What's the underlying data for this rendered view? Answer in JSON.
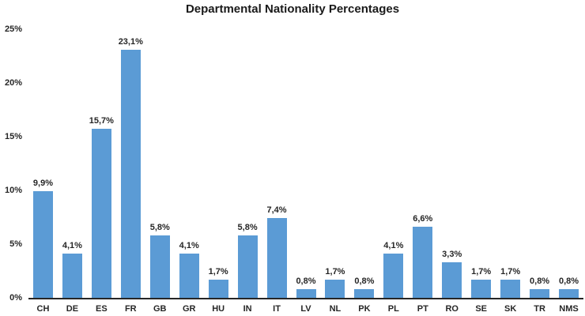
{
  "chart_data": {
    "type": "bar",
    "title": "Departmental Nationality Percentages",
    "categories": [
      "CH",
      "DE",
      "ES",
      "FR",
      "GB",
      "GR",
      "HU",
      "IN",
      "IT",
      "LV",
      "NL",
      "PK",
      "PL",
      "PT",
      "RO",
      "SE",
      "SK",
      "TR",
      "NMS"
    ],
    "values": [
      9.9,
      4.1,
      15.7,
      23.1,
      5.8,
      4.1,
      1.7,
      5.8,
      7.4,
      0.8,
      1.7,
      0.8,
      4.1,
      6.6,
      3.3,
      1.7,
      1.7,
      0.8,
      0.8
    ],
    "data_labels": [
      "9,9%",
      "4,1%",
      "15,7%",
      "23,1%",
      "5,8%",
      "4,1%",
      "1,7%",
      "5,8%",
      "7,4%",
      "0,8%",
      "1,7%",
      "0,8%",
      "4,1%",
      "6,6%",
      "3,3%",
      "1,7%",
      "1,7%",
      "0,8%",
      "0,8%"
    ],
    "xlabel": "",
    "ylabel": "",
    "ylim": [
      0,
      25
    ],
    "y_tick_values": [
      0,
      5,
      10,
      15,
      20,
      25
    ],
    "y_tick_labels": [
      "0%",
      "5%",
      "10%",
      "15%",
      "20%",
      "25%"
    ],
    "grid": false,
    "legend": "none",
    "bar_color": "#5B9BD5",
    "axis_color": "#262626",
    "label_color": "#262626",
    "title_color": "#1a1a1a",
    "background_color": "#ffffff"
  }
}
